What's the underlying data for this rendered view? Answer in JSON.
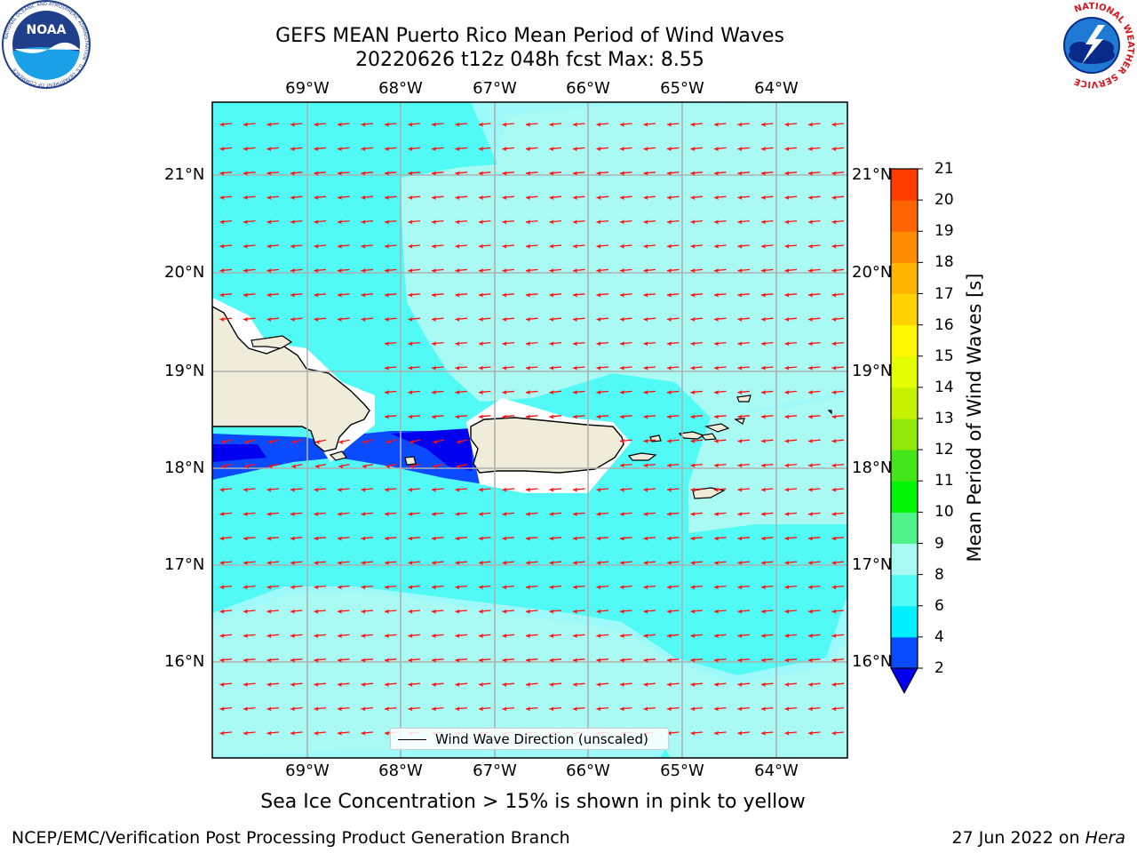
{
  "header": {
    "title_line1": "GEFS MEAN Puerto Rico Mean Period of Wind Waves",
    "title_line2": "20220626 t12z 048h fcst   Max: 8.55"
  },
  "logos": {
    "noara_text": "NOAA",
    "noaa_ring_text": "NATIONAL OCEANIC AND ATMOSPHERIC ADMINISTRATION · U.S. DEPARTMENT OF COMMERCE",
    "nws_ring_text": "NATIONAL WEATHER SERVICE"
  },
  "map": {
    "lon_ticks": [
      "69°W",
      "68°W",
      "67°W",
      "66°W",
      "65°W",
      "64°W"
    ],
    "lon_values": [
      -69,
      -68,
      -67,
      -66,
      -65,
      -64
    ],
    "lat_ticks": [
      "21°N",
      "20°N",
      "19°N",
      "18°N",
      "17°N",
      "16°N"
    ],
    "lat_values": [
      21,
      20,
      19,
      18,
      17,
      16
    ],
    "extent": {
      "lon_min": -70.0,
      "lon_max": -63.25,
      "lat_min": 15.0,
      "lat_max": 21.75
    },
    "ocean_color": "#9efafa",
    "land_color": "#efedda",
    "arrow_color": "#ff1010",
    "legend_label": "Wind Wave Direction (unscaled)"
  },
  "colorbar": {
    "label": "Mean Period of Wind Waves [s]",
    "levels": [
      "2",
      "4",
      "6",
      "8",
      "9",
      "10",
      "11",
      "12",
      "13",
      "14",
      "15",
      "16",
      "17",
      "18",
      "19",
      "20",
      "21"
    ],
    "colors": [
      "#0a4bff",
      "#00f0ff",
      "#52faf6",
      "#aafaf4",
      "#50f28a",
      "#02f502",
      "#45e51c",
      "#90e80a",
      "#c6f200",
      "#e3ff00",
      "#fff800",
      "#ffd200",
      "#ffb400",
      "#ff8c00",
      "#ff6400",
      "#ff3c00",
      "#ff0000"
    ],
    "extend_color": "#0000ee"
  },
  "footer": {
    "sea_ice_note": "Sea Ice Concentration > 15% is shown in pink to yellow",
    "credit": "NCEP/EMC/Verification Post Processing Product Generation Branch",
    "date_prefix": "27 Jun 2022 on ",
    "host": "Hera"
  }
}
